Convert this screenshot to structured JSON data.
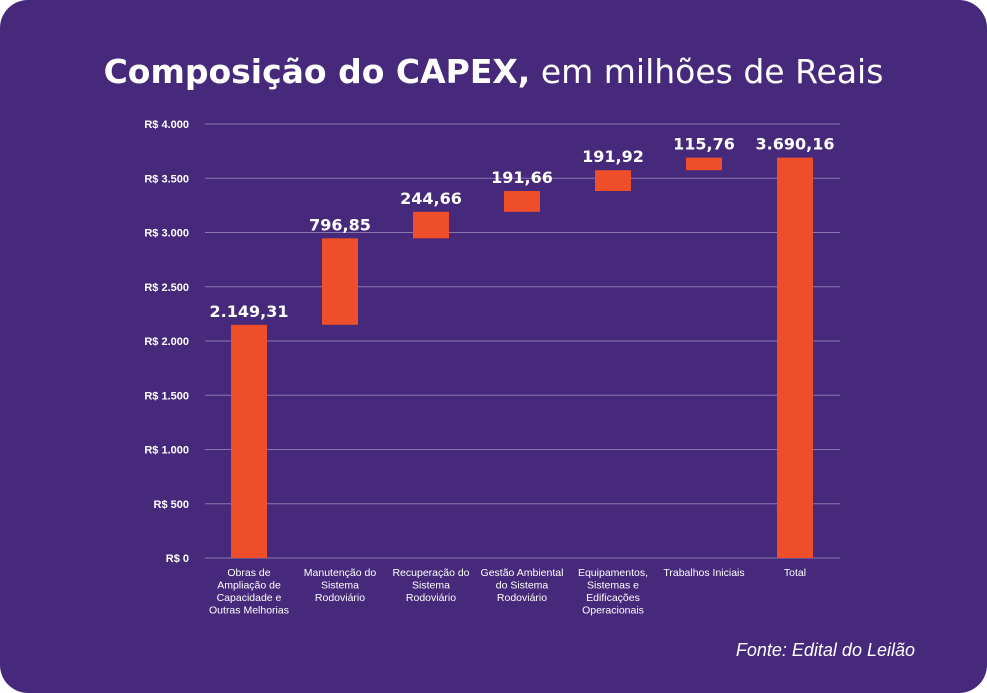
{
  "title": {
    "bold": "Composição do CAPEX,",
    "light": " em milhões de Reais"
  },
  "source": "Fonte: Edital do Leilão",
  "colors": {
    "background": "#46297a",
    "bar": "#ef4e2a",
    "grid": "#8a76b0",
    "text": "#ffffff"
  },
  "chart_data": {
    "type": "bar",
    "subtype": "waterfall",
    "title": "Composição do CAPEX, em milhões de Reais",
    "ylim": [
      0,
      4000
    ],
    "y_ticks": [
      0,
      500,
      1000,
      1500,
      2000,
      2500,
      3000,
      3500,
      4000
    ],
    "y_tick_labels": [
      "R$ 0",
      "R$ 500",
      "R$ 1.000",
      "R$ 1.500",
      "R$ 2.000",
      "R$ 2.500",
      "R$ 3.000",
      "R$ 3.500",
      "R$ 4.000"
    ],
    "grid": true,
    "bars": [
      {
        "category": [
          "Obras de",
          "Ampliação de",
          "Capacidade e",
          "Outras Melhorias"
        ],
        "start": 0,
        "end": 2149.31,
        "label": "2.149,31"
      },
      {
        "category": [
          "Manutenção do",
          "Sistema",
          "Rodoviário"
        ],
        "start": 2149.31,
        "end": 2946.16,
        "label": "796,85"
      },
      {
        "category": [
          "Recuperação do",
          "Sistema",
          "Rodoviário"
        ],
        "start": 2946.16,
        "end": 3190.82,
        "label": "244,66"
      },
      {
        "category": [
          "Gestão Ambiental",
          "do Sistema",
          "Rodoviário"
        ],
        "start": 3190.82,
        "end": 3382.48,
        "label": "191,66"
      },
      {
        "category": [
          "Equipamentos,",
          "Sistemas e",
          "Edificações",
          "Operacionais"
        ],
        "start": 3382.48,
        "end": 3574.4,
        "label": "191,92"
      },
      {
        "category": [
          "Trabalhos Iniciais"
        ],
        "start": 3574.4,
        "end": 3690.16,
        "label": "115,76"
      },
      {
        "category": [
          "Total"
        ],
        "start": 0,
        "end": 3690.16,
        "label": "3.690,16"
      }
    ]
  }
}
